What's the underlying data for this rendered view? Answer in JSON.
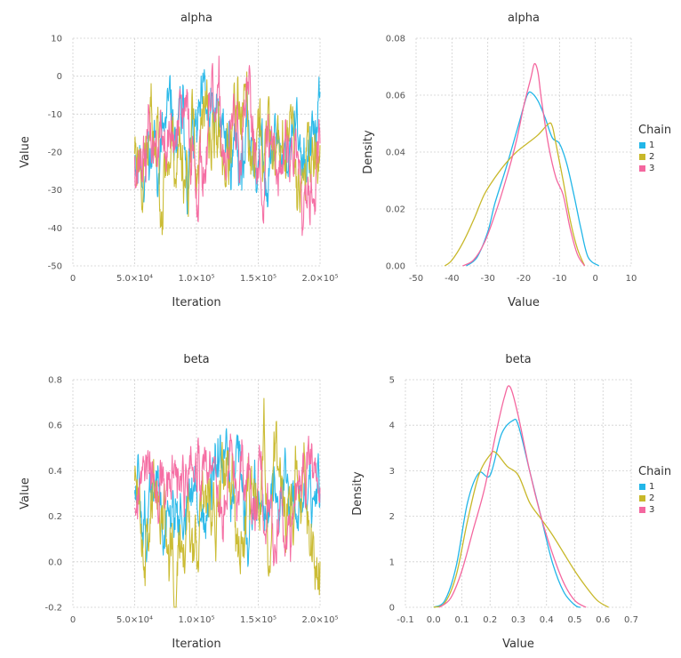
{
  "chart_data": [
    {
      "id": "alpha-trace",
      "type": "line",
      "title": "alpha",
      "xlabel": "Iteration",
      "ylabel": "Value",
      "xlim": [
        0,
        200000
      ],
      "ylim": [
        -50,
        10
      ],
      "xticks": [
        0,
        50000,
        100000,
        150000,
        200000
      ],
      "xtick_labels": [
        "0",
        "5.0×10⁴",
        "1.0×10⁵",
        "1.5×10⁵",
        "2.0×10⁵"
      ],
      "yticks": [
        10,
        0,
        -10,
        -20,
        -30,
        -40,
        -50
      ],
      "ytick_labels": [
        "10",
        "0",
        "-10",
        "-20",
        "-30",
        "-40",
        "-50"
      ],
      "series": [
        {
          "name": "1",
          "x": [
            50000,
            200000
          ],
          "mean": -18,
          "sd": 6,
          "seed": 11
        },
        {
          "name": "2",
          "x": [
            50000,
            200000
          ],
          "mean": -18,
          "sd": 7,
          "seed": 23
        },
        {
          "name": "3",
          "x": [
            50000,
            200000
          ],
          "mean": -18,
          "sd": 6,
          "seed": 37
        }
      ]
    },
    {
      "id": "alpha-density",
      "type": "line",
      "title": "alpha",
      "xlabel": "Value",
      "ylabel": "Density",
      "xlim": [
        -50,
        10
      ],
      "ylim": [
        0,
        0.08
      ],
      "xticks": [
        -50,
        -40,
        -30,
        -20,
        -10,
        0,
        10
      ],
      "xtick_labels": [
        "-50",
        "-40",
        "-30",
        "-20",
        "-10",
        "0",
        "10"
      ],
      "yticks": [
        0,
        0.02,
        0.04,
        0.06,
        0.08
      ],
      "ytick_labels": [
        "0.00",
        "0.02",
        "0.04",
        "0.06",
        "0.08"
      ],
      "legend": {
        "title": "Chain",
        "entries": [
          "1",
          "2",
          "3"
        ]
      },
      "series": [
        {
          "name": "1",
          "x": [
            -36,
            -33,
            -30,
            -28,
            -25,
            -22,
            -20,
            -19,
            -18,
            -16,
            -14,
            -12,
            -10,
            -8,
            -6,
            -4,
            -2,
            1
          ],
          "y": [
            0,
            0.003,
            0.012,
            0.022,
            0.034,
            0.047,
            0.056,
            0.06,
            0.061,
            0.058,
            0.052,
            0.045,
            0.043,
            0.036,
            0.025,
            0.013,
            0.003,
            0
          ]
        },
        {
          "name": "2",
          "x": [
            -42,
            -40,
            -37,
            -34,
            -31,
            -28,
            -25,
            -22,
            -19,
            -16,
            -13,
            -12,
            -11,
            -9,
            -7,
            -5,
            -3
          ],
          "y": [
            0,
            0.002,
            0.008,
            0.016,
            0.025,
            0.031,
            0.036,
            0.04,
            0.043,
            0.046,
            0.05,
            0.049,
            0.043,
            0.03,
            0.016,
            0.006,
            0
          ]
        },
        {
          "name": "3",
          "x": [
            -37,
            -34,
            -31,
            -28,
            -25,
            -22,
            -20,
            -18,
            -17,
            -16,
            -15,
            -13,
            -11,
            -9,
            -7,
            -5,
            -3
          ],
          "y": [
            0,
            0.002,
            0.008,
            0.018,
            0.03,
            0.044,
            0.056,
            0.066,
            0.071,
            0.068,
            0.058,
            0.042,
            0.031,
            0.025,
            0.013,
            0.004,
            0
          ]
        }
      ]
    },
    {
      "id": "beta-trace",
      "type": "line",
      "title": "beta",
      "xlabel": "Iteration",
      "ylabel": "Value",
      "xlim": [
        0,
        200000
      ],
      "ylim": [
        -0.2,
        0.8
      ],
      "xticks": [
        0,
        50000,
        100000,
        150000,
        200000
      ],
      "xtick_labels": [
        "0",
        "5.0×10⁴",
        "1.0×10⁵",
        "1.5×10⁵",
        "2.0×10⁵"
      ],
      "yticks": [
        0.8,
        0.6,
        0.4,
        0.2,
        0.0,
        -0.2
      ],
      "ytick_labels": [
        "0.8",
        "0.6",
        "0.4",
        "0.2",
        "0.0",
        "-0.2"
      ],
      "series": [
        {
          "name": "1",
          "x": [
            50000,
            200000
          ],
          "mean": 0.26,
          "sd": 0.09,
          "seed": 51
        },
        {
          "name": "2",
          "x": [
            50000,
            200000
          ],
          "mean": 0.27,
          "sd": 0.11,
          "seed": 63
        },
        {
          "name": "3",
          "x": [
            50000,
            200000
          ],
          "mean": 0.28,
          "sd": 0.09,
          "seed": 77
        }
      ]
    },
    {
      "id": "beta-density",
      "type": "line",
      "title": "beta",
      "xlabel": "Value",
      "ylabel": "Density",
      "xlim": [
        -0.1,
        0.7
      ],
      "ylim": [
        0,
        5
      ],
      "xticks": [
        -0.1,
        0.0,
        0.1,
        0.2,
        0.3,
        0.4,
        0.5,
        0.6,
        0.7
      ],
      "xtick_labels": [
        "-0.1",
        "0.0",
        "0.1",
        "0.2",
        "0.3",
        "0.4",
        "0.5",
        "0.6",
        "0.7"
      ],
      "yticks": [
        0,
        1,
        2,
        3,
        4,
        5
      ],
      "ytick_labels": [
        "0",
        "1",
        "2",
        "3",
        "4",
        "5"
      ],
      "legend": {
        "title": "Chain",
        "entries": [
          "1",
          "2",
          "3"
        ]
      },
      "series": [
        {
          "name": "1",
          "x": [
            0.0,
            0.04,
            0.08,
            0.12,
            0.16,
            0.2,
            0.24,
            0.28,
            0.3,
            0.34,
            0.38,
            0.42,
            0.46,
            0.5,
            0.52
          ],
          "y": [
            0,
            0.15,
            0.9,
            2.3,
            2.95,
            2.9,
            3.8,
            4.1,
            4.0,
            3.0,
            2.0,
            1.0,
            0.35,
            0.05,
            0
          ]
        },
        {
          "name": "2",
          "x": [
            0.0,
            0.04,
            0.08,
            0.12,
            0.16,
            0.2,
            0.22,
            0.26,
            0.3,
            0.34,
            0.38,
            0.42,
            0.46,
            0.5,
            0.54,
            0.58,
            0.62
          ],
          "y": [
            0,
            0.1,
            0.7,
            1.9,
            2.9,
            3.35,
            3.4,
            3.1,
            2.9,
            2.3,
            1.95,
            1.6,
            1.2,
            0.8,
            0.45,
            0.15,
            0
          ]
        },
        {
          "name": "3",
          "x": [
            0.02,
            0.06,
            0.1,
            0.14,
            0.18,
            0.22,
            0.25,
            0.27,
            0.3,
            0.34,
            0.38,
            0.42,
            0.46,
            0.5,
            0.54
          ],
          "y": [
            0,
            0.2,
            0.8,
            1.7,
            2.6,
            3.8,
            4.6,
            4.85,
            4.2,
            3.0,
            2.0,
            1.2,
            0.55,
            0.15,
            0
          ]
        }
      ]
    }
  ],
  "colors": {
    "chain1": "#22b6e8",
    "chain2": "#c8b82a",
    "chain3": "#f4679f"
  }
}
